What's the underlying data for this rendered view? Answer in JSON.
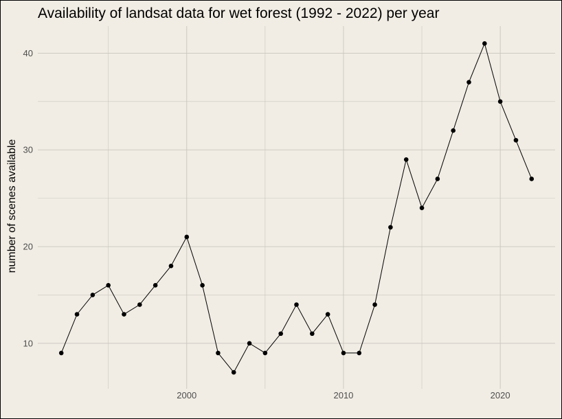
{
  "chart_data": {
    "type": "line",
    "title": "Availability of landsat data for wet forest (1992 - 2022) per year",
    "xlabel": "",
    "ylabel": "number of scenes available",
    "x": [
      1992,
      1993,
      1994,
      1995,
      1996,
      1997,
      1998,
      1999,
      2000,
      2001,
      2002,
      2003,
      2004,
      2005,
      2006,
      2007,
      2008,
      2009,
      2010,
      2011,
      2012,
      2013,
      2014,
      2015,
      2016,
      2017,
      2018,
      2019,
      2020,
      2021,
      2022
    ],
    "series": [
      {
        "values": [
          9,
          13,
          15,
          16,
          13,
          14,
          16,
          18,
          21,
          16,
          9,
          7,
          10,
          9,
          11,
          14,
          11,
          13,
          9,
          9,
          14,
          22,
          29,
          24,
          27,
          32,
          37,
          41,
          35,
          31,
          27
        ]
      }
    ],
    "xlim": [
      1990.5,
      2023.5
    ],
    "ylim": [
      5.3,
      42.8
    ],
    "x_ticks": [
      2000,
      2010,
      2020
    ],
    "y_ticks": [
      10,
      20,
      30,
      40
    ],
    "x_tick_labels": [
      "2000",
      "2010",
      "2020"
    ],
    "y_tick_labels": [
      "10",
      "20",
      "30",
      "40"
    ],
    "grid": true,
    "background_color": "#f1ede4",
    "grid_color": "#c9c6bf",
    "line_color": "#000000",
    "point_color": "#000000"
  }
}
